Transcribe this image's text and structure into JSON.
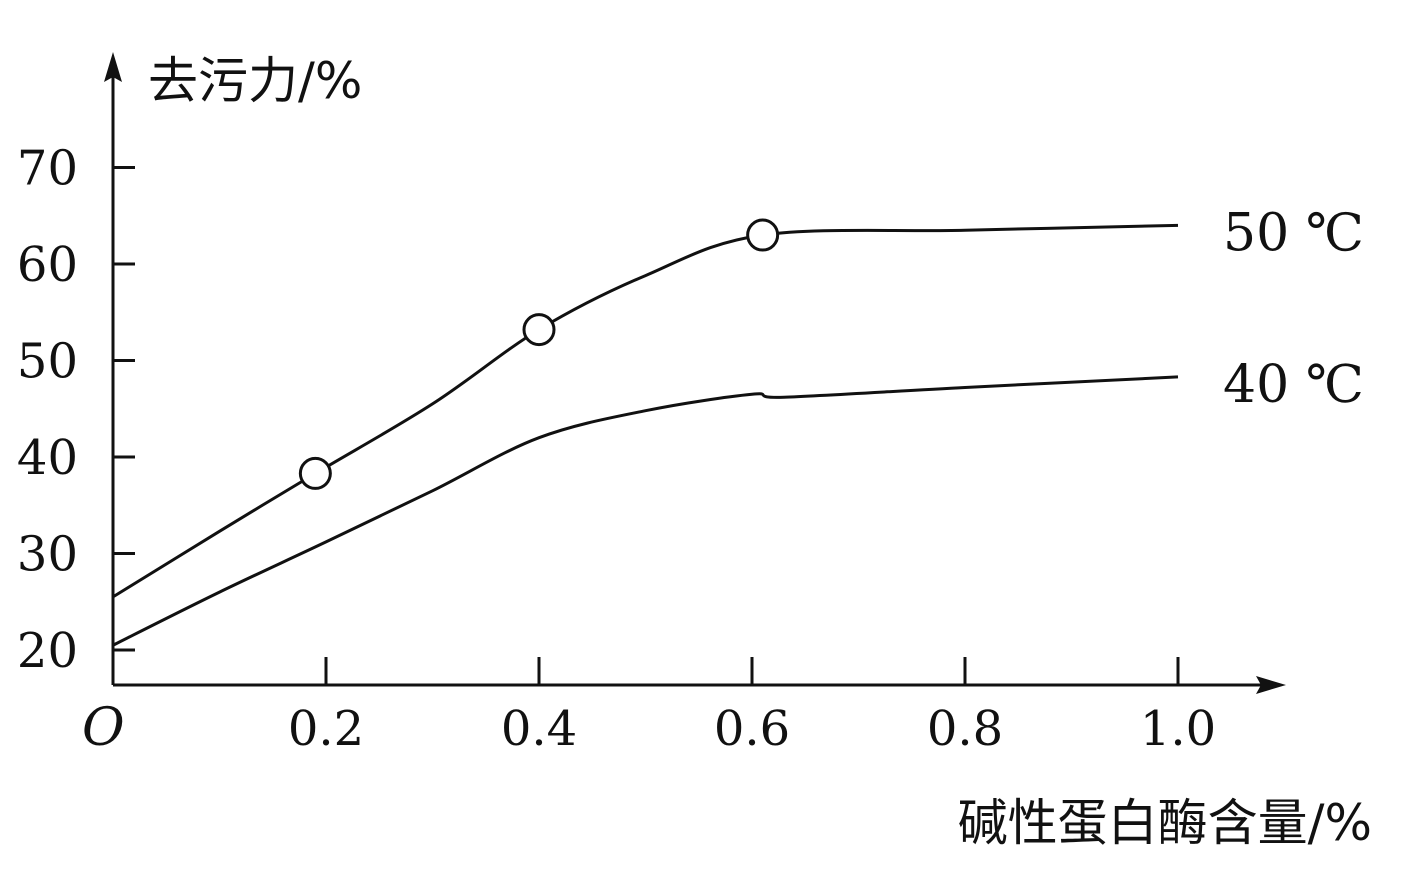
{
  "chart_data": {
    "type": "line",
    "title": "",
    "xlabel": "碱性蛋白酶含量/%",
    "ylabel": "去污力/%",
    "origin_label": "O",
    "xlim": [
      0,
      1.0
    ],
    "ylim": [
      15,
      70
    ],
    "x_ticks": [
      "0.2",
      "0.4",
      "0.6",
      "0.8",
      "1.0"
    ],
    "x_tick_values": [
      0.2,
      0.4,
      0.6,
      0.8,
      1.0
    ],
    "y_ticks": [
      "20",
      "30",
      "40",
      "50",
      "60",
      "70"
    ],
    "y_tick_values": [
      20,
      30,
      40,
      50,
      60,
      70
    ],
    "grid": false,
    "series": [
      {
        "name": "50 ℃",
        "x": [
          0,
          0.1,
          0.19,
          0.3,
          0.4,
          0.5,
          0.61,
          0.8,
          1.0
        ],
        "y": [
          25.5,
          32.3,
          38.3,
          45.5,
          53.2,
          58.8,
          63.0,
          63.5,
          64.0
        ],
        "markers": [
          {
            "x": 0.19,
            "y": 38.3
          },
          {
            "x": 0.4,
            "y": 53.2
          },
          {
            "x": 0.61,
            "y": 63.0
          }
        ]
      },
      {
        "name": "40 ℃",
        "x": [
          0,
          0.1,
          0.2,
          0.3,
          0.4,
          0.5,
          0.6,
          0.63,
          0.8,
          1.0
        ],
        "y": [
          20.5,
          26.0,
          31.2,
          36.5,
          42.0,
          44.8,
          46.5,
          46.2,
          47.2,
          48.3
        ]
      }
    ],
    "colors": {
      "line": "#111111",
      "marker_fill": "#ffffff"
    }
  }
}
